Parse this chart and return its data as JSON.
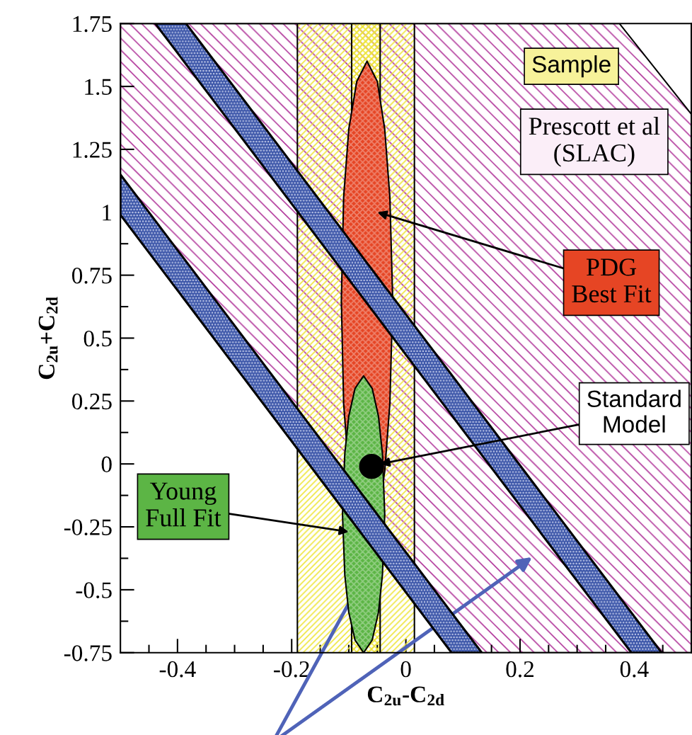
{
  "chart_data": {
    "type": "area",
    "xlabel": "C$_{2u}$-C$_{2d}$",
    "ylabel": "C$_{2u}$+C$_{2d}$",
    "xlim": [
      -0.5,
      0.5
    ],
    "ylim": [
      -0.75,
      1.75
    ],
    "xticks": [
      {
        "value": -0.45,
        "label": null
      },
      -0.4,
      {
        "value": -0.35,
        "label": null
      },
      {
        "value": -0.3,
        "label": null
      },
      {
        "value": -0.25,
        "label": null
      },
      -0.2,
      {
        "value": -0.15,
        "label": null
      },
      {
        "value": -0.1,
        "label": null
      },
      {
        "value": -0.05,
        "label": null
      },
      0,
      {
        "value": 0.05,
        "label": null
      },
      {
        "value": 0.1,
        "label": null
      },
      {
        "value": 0.15,
        "label": null
      },
      0.2,
      {
        "value": 0.25,
        "label": null
      },
      {
        "value": 0.3,
        "label": null
      },
      {
        "value": 0.35,
        "label": null
      },
      0.4,
      {
        "value": 0.45,
        "label": null
      }
    ],
    "yticks": [
      -0.75,
      {
        "value": -0.625,
        "label": null
      },
      -0.5,
      {
        "value": -0.375,
        "label": null
      },
      -0.25,
      {
        "value": -0.125,
        "label": null
      },
      0,
      {
        "value": 0.125,
        "label": null
      },
      0.25,
      {
        "value": 0.375,
        "label": null
      },
      0.5,
      {
        "value": 0.625,
        "label": null
      },
      0.75,
      {
        "value": 0.875,
        "label": null
      },
      1,
      1.25,
      1.5,
      1.75
    ],
    "bands": [
      {
        "axis": "x",
        "from": -0.19,
        "to": 0.015,
        "color": "#eee53a"
      },
      {
        "axis": "x",
        "from": -0.095,
        "to": -0.045,
        "color": "#eee53a"
      }
    ],
    "annotations": [
      "Sample",
      "Prescott et al\n(SLAC)",
      {
        "text": "PDG\nBest Fit",
        "x": -0.05,
        "y": 1.0
      },
      {
        "text": "Standard\nModel",
        "x": -0.045,
        "y": 0.0
      },
      {
        "text": "Young\nFull Fit",
        "x": -0.1,
        "y": -0.27
      }
    ],
    "series": [
      {
        "color": "#b23a9c",
        "x": [
          -0.5,
          -0.5,
          0.374,
          0.5,
          0.5,
          0.08
        ],
        "values": [
          0.99,
          1.75,
          1.75,
          1.39,
          -0.75,
          -0.75
        ]
      },
      {
        "color": "#e64524",
        "x": [
          -0.113,
          -0.109,
          -0.1,
          -0.086,
          -0.068,
          -0.05,
          -0.037,
          -0.028,
          -0.023,
          -0.028,
          -0.037,
          -0.05,
          -0.068,
          -0.086,
          -0.1,
          -0.109
        ],
        "values": [
          0.65,
          1.06,
          1.33,
          1.52,
          1.6,
          1.52,
          1.33,
          1.06,
          0.65,
          0.24,
          -0.03,
          -0.22,
          -0.3,
          -0.22,
          -0.03,
          0.24
        ]
      },
      {
        "color": "#5cb545",
        "x": [
          -0.111,
          -0.107,
          -0.1,
          -0.089,
          -0.074,
          -0.059,
          -0.048,
          -0.041,
          -0.037,
          -0.041,
          -0.048,
          -0.059,
          -0.074,
          -0.089,
          -0.1,
          -0.107
        ],
        "values": [
          -0.2,
          0.04,
          0.19,
          0.3,
          0.35,
          0.3,
          0.19,
          0.04,
          -0.2,
          -0.44,
          -0.59,
          -0.7,
          -0.75,
          -0.7,
          -0.59,
          -0.44
        ]
      },
      {
        "color": "#3b55a8",
        "x": [
          -0.439,
          -0.385,
          0.448,
          0.395
        ],
        "values": [
          1.75,
          1.75,
          -0.75,
          -0.75
        ]
      },
      {
        "color": "#3b55a8",
        "x": [
          -0.5,
          -0.5,
          0.133,
          0.08
        ],
        "values": [
          0.99,
          1.15,
          -0.75,
          -0.75
        ]
      },
      {
        "type": "scatter",
        "color": "#000000",
        "marker": "circle",
        "x": [
          -0.06
        ],
        "values": [
          -0.01
        ]
      }
    ]
  }
}
